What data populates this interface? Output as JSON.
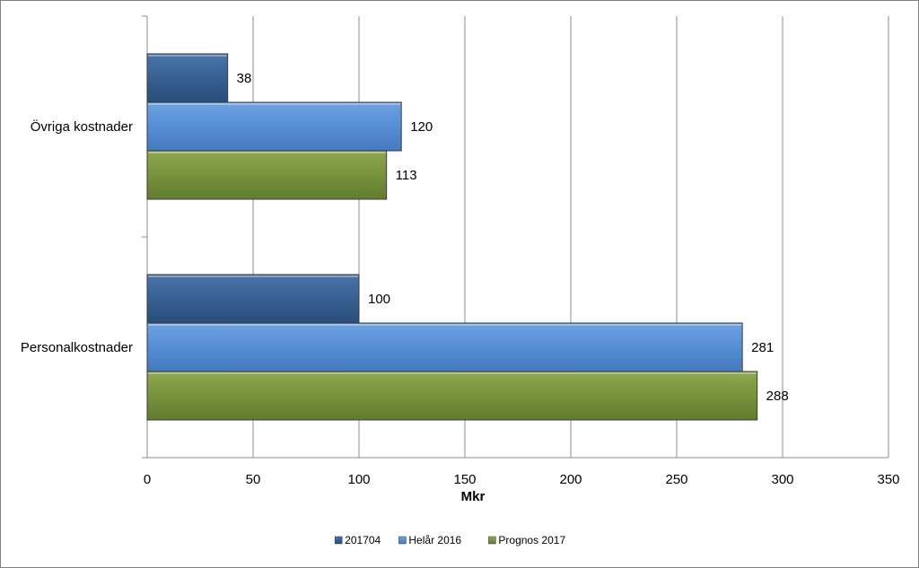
{
  "chart_data": {
    "type": "bar",
    "orientation": "horizontal",
    "categories": [
      "Övriga kostnader",
      "Personalkostnader"
    ],
    "series": [
      {
        "name": "201704",
        "values": [
          38,
          100
        ],
        "color": "#376092"
      },
      {
        "name": "Helår 2016",
        "values": [
          120,
          281
        ],
        "color": "#558ED5"
      },
      {
        "name": "Prognos 2017",
        "values": [
          113,
          288
        ],
        "color": "#77933C"
      }
    ],
    "xlabel": "Mkr",
    "xlim": [
      0,
      350
    ],
    "xticks": [
      "0",
      "50",
      "100",
      "150",
      "200",
      "250",
      "300",
      "350"
    ],
    "grid": true,
    "legend_position": "bottom"
  }
}
